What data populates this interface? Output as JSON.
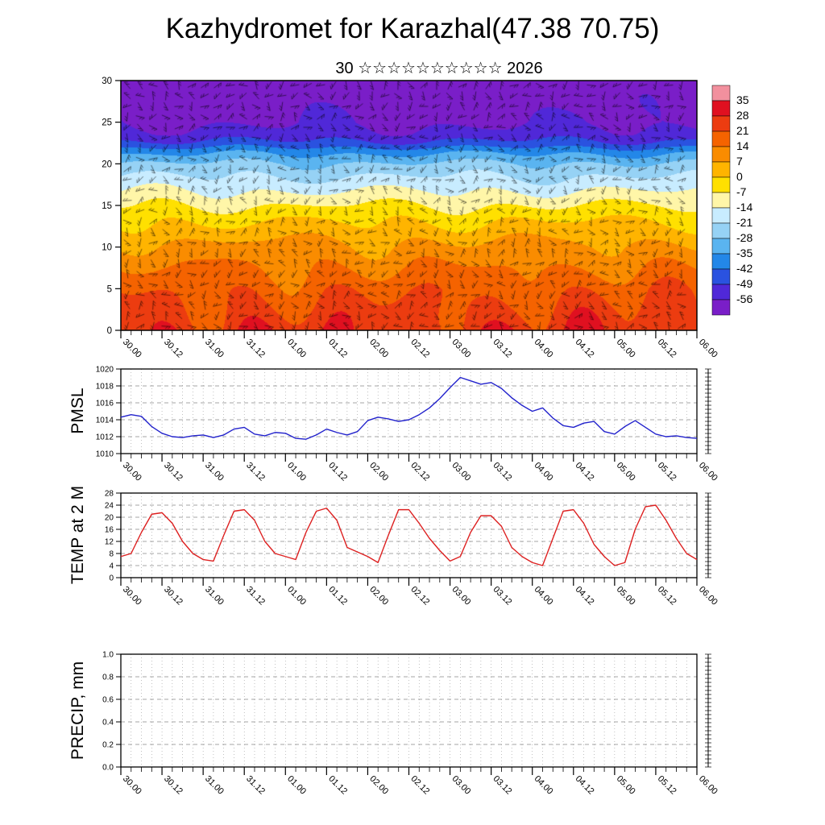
{
  "title": "Kazhydromet for Karazhal(47.38 70.75)",
  "subtitle": "30 ☆☆☆☆☆☆☆☆☆☆ 2026",
  "time_labels": [
    "30.00",
    "30.12",
    "31.00",
    "31.12",
    "01.00",
    "01.12",
    "02.00",
    "02.12",
    "03.00",
    "03.12",
    "04.00",
    "04.12",
    "05.00",
    "05.12",
    "06.00"
  ],
  "chart_data": [
    {
      "type": "heatmap",
      "name": "temperature-height cross-section with wind barbs",
      "x_labels": [
        "30.00",
        "30.12",
        "31.00",
        "31.12",
        "01.00",
        "01.12",
        "02.00",
        "02.12",
        "03.00",
        "03.12",
        "04.00",
        "04.12",
        "05.00",
        "05.12",
        "06.00"
      ],
      "ylim": [
        0,
        30
      ],
      "yticks": [
        0,
        5,
        10,
        15,
        20,
        25,
        30
      ],
      "colorbar_labels": [
        35,
        28,
        21,
        14,
        7,
        0,
        -7,
        -14,
        -21,
        -28,
        -35,
        -42,
        -49,
        -56
      ],
      "colorbar_colors": [
        "#f2909e",
        "#e01020",
        "#ec3c10",
        "#f56300",
        "#fa8c00",
        "#ffb400",
        "#ffe000",
        "#fff6a8",
        "#c8ecff",
        "#96d2f5",
        "#5ab4f0",
        "#2387e8",
        "#2a52e0",
        "#5028d8",
        "#7a1ec8"
      ],
      "profile_heights": [
        0,
        5,
        8,
        10,
        12,
        14,
        16,
        18,
        20,
        21.5,
        22.5,
        23.5,
        25,
        30
      ],
      "profile_temps": [
        26,
        19,
        13,
        9,
        3,
        -3,
        -11,
        -19,
        -27,
        -37,
        -47,
        -53,
        -57,
        -61
      ],
      "diurnal_amplitude": 4.5
    },
    {
      "type": "line",
      "name": "PMSL",
      "color": "#2222cc",
      "ylim": [
        1010,
        1020
      ],
      "yticks": [
        1010,
        1012,
        1014,
        1016,
        1018,
        1020
      ],
      "step_hours": 3,
      "values": [
        1014.3,
        1014.6,
        1014.4,
        1013.2,
        1012.4,
        1012.0,
        1011.9,
        1012.1,
        1012.2,
        1011.9,
        1012.2,
        1012.9,
        1013.1,
        1012.3,
        1012.1,
        1012.5,
        1012.4,
        1011.8,
        1011.7,
        1012.2,
        1012.9,
        1012.5,
        1012.2,
        1012.6,
        1013.9,
        1014.3,
        1014.1,
        1013.8,
        1014.0,
        1014.6,
        1015.4,
        1016.5,
        1017.8,
        1019.0,
        1018.6,
        1018.2,
        1018.4,
        1017.7,
        1016.6,
        1015.7,
        1015.0,
        1015.4,
        1014.2,
        1013.3,
        1013.1,
        1013.6,
        1013.8,
        1012.6,
        1012.3,
        1013.2,
        1013.9,
        1013.1,
        1012.3,
        1012.0,
        1012.1,
        1011.9,
        1011.8
      ]
    },
    {
      "type": "line",
      "name": "TEMP at 2 M",
      "color": "#dd2020",
      "ylim": [
        0,
        28
      ],
      "yticks": [
        0,
        4,
        8,
        12,
        16,
        20,
        24,
        28
      ],
      "step_hours": 3,
      "values": [
        7,
        8,
        15,
        21,
        21.5,
        18,
        12,
        8,
        6,
        5.5,
        14,
        22,
        22.5,
        19,
        12,
        8,
        7,
        6,
        15,
        22,
        23,
        19,
        10,
        8.5,
        7,
        5,
        14,
        22.5,
        22.5,
        18,
        13,
        9,
        5.5,
        7,
        15,
        20.5,
        20.5,
        17,
        10,
        7,
        5,
        4,
        13,
        22,
        22.5,
        18,
        11,
        7,
        4,
        5,
        16,
        23.5,
        24,
        19,
        13,
        8,
        6
      ]
    },
    {
      "type": "line",
      "name": "PRECIP, mm",
      "color": "#22aa22",
      "ylim": [
        0,
        1
      ],
      "yticks": [
        "0.0",
        "0.2",
        "0.4",
        "0.6",
        "0.8",
        "1.0"
      ],
      "step_hours": 3,
      "values": []
    }
  ]
}
